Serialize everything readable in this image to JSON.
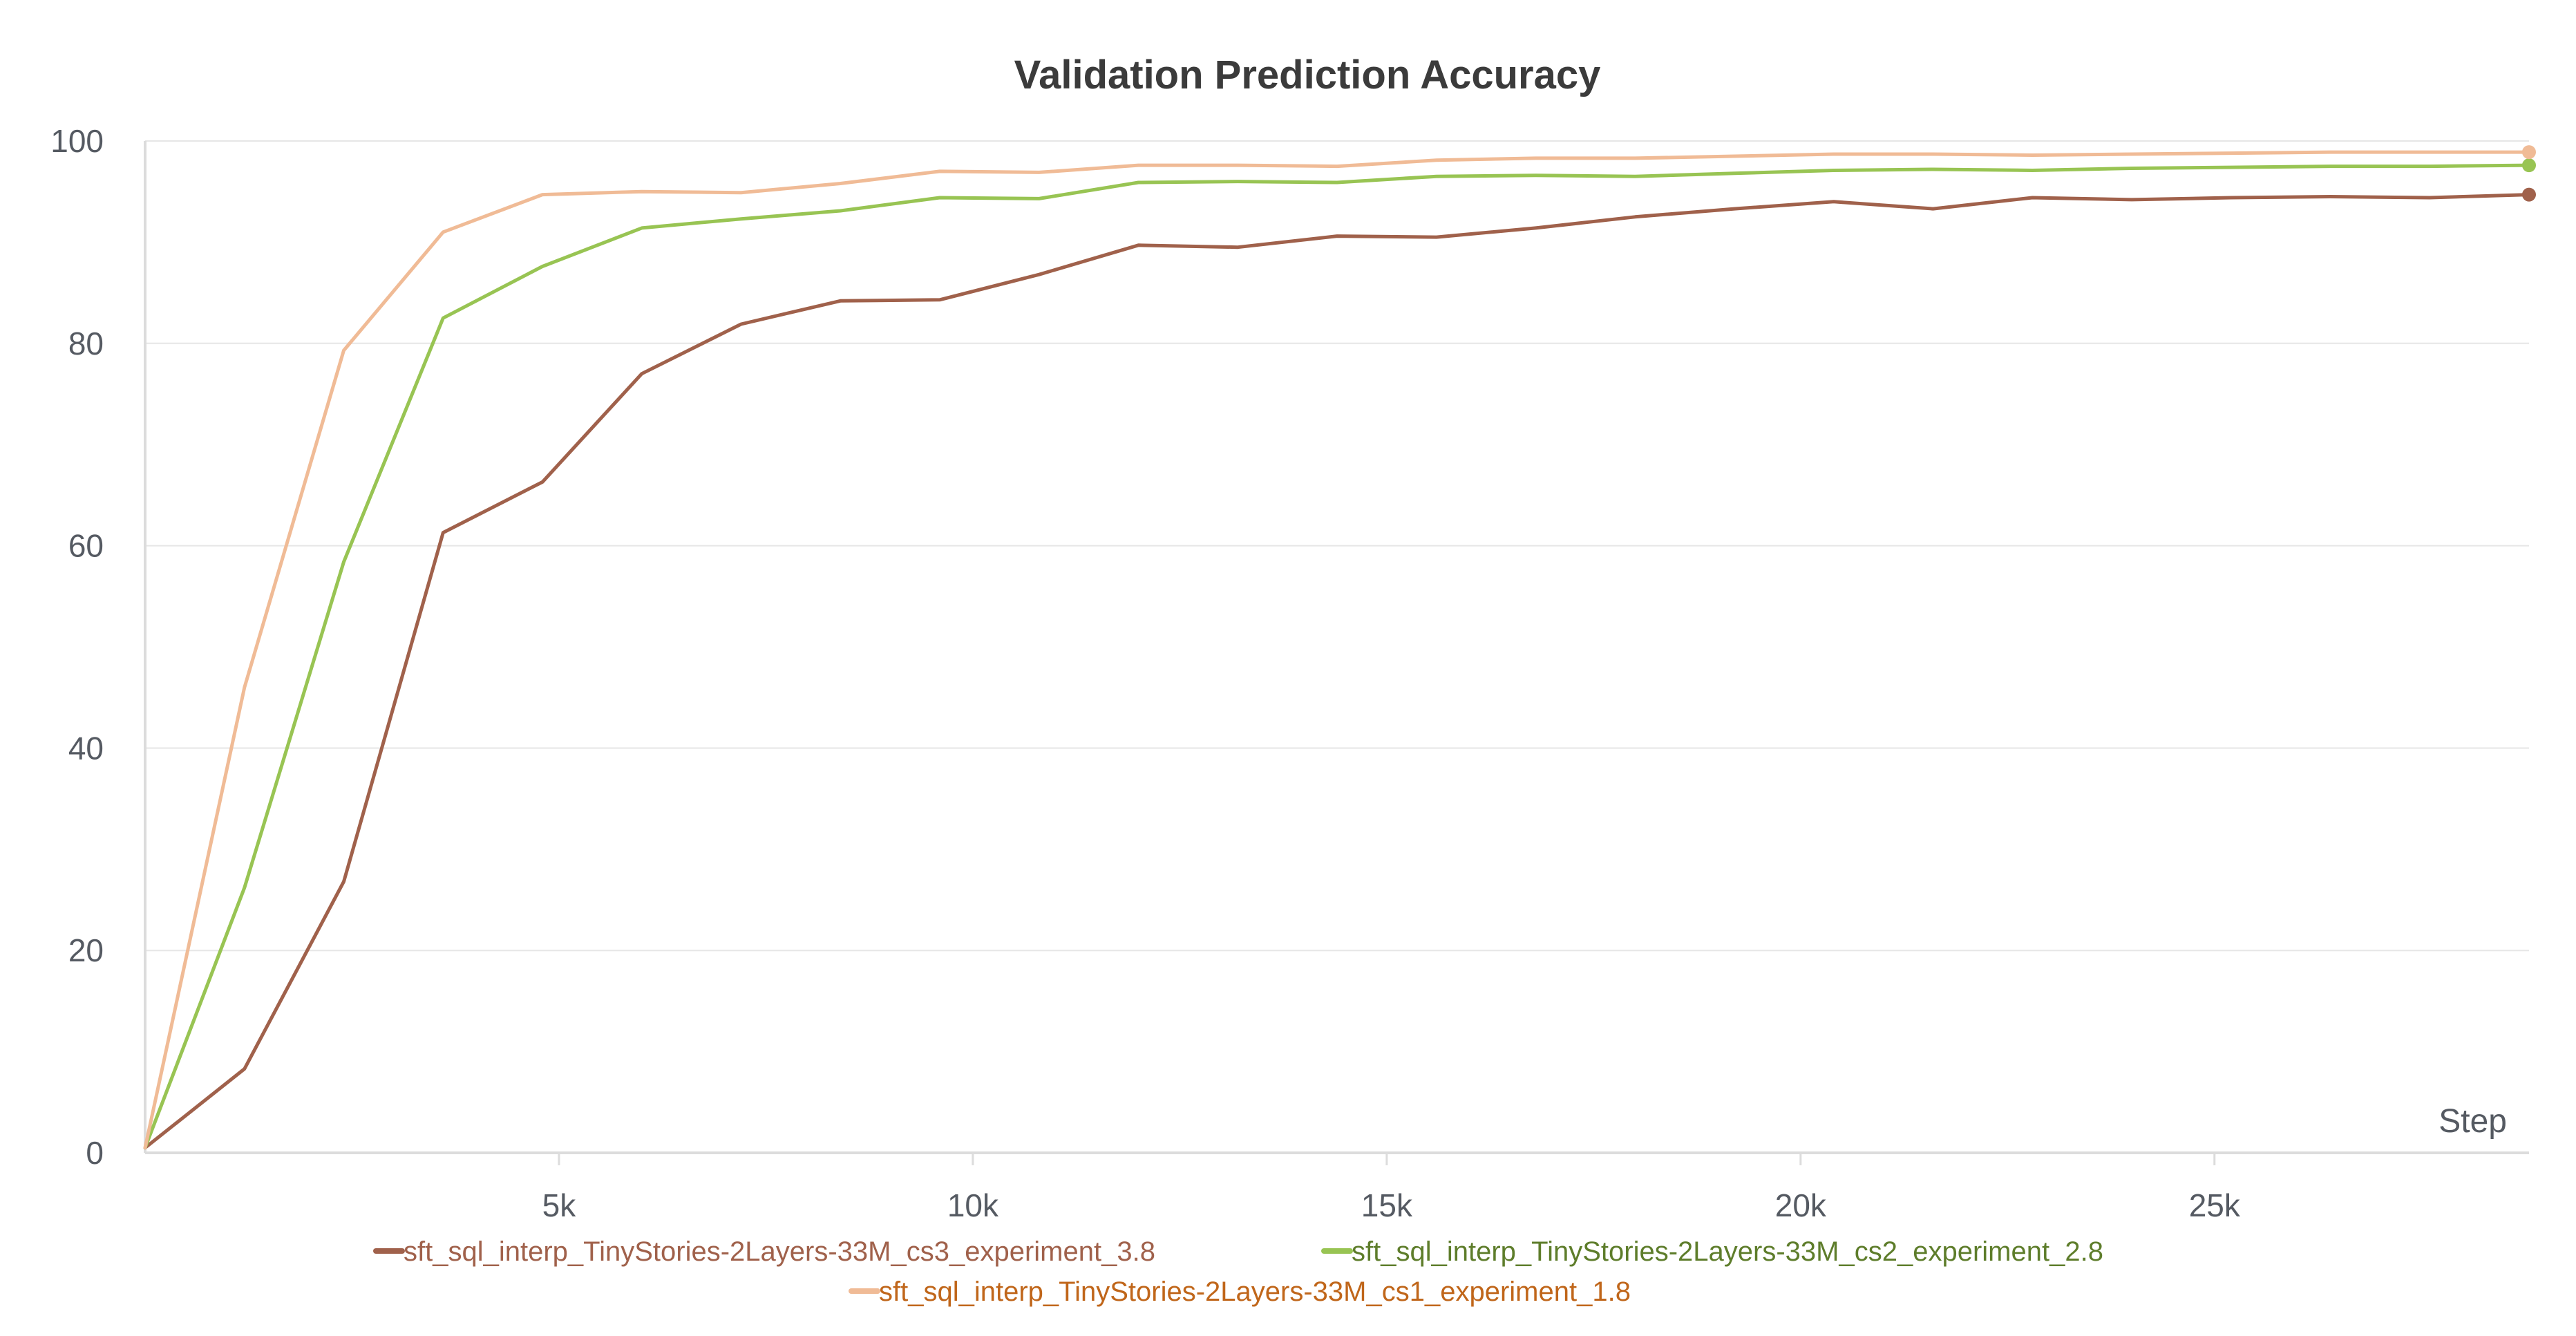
{
  "chart_data": {
    "type": "line",
    "title": "Validation Prediction Accuracy",
    "xlabel": "Step",
    "ylabel": "",
    "xlim": [
      0,
      28800
    ],
    "ylim": [
      0,
      100
    ],
    "x_ticks": [
      5000,
      10000,
      15000,
      20000,
      25000
    ],
    "x_tick_labels": [
      "5k",
      "10k",
      "15k",
      "20k",
      "25k"
    ],
    "y_ticks": [
      0,
      20,
      40,
      60,
      80,
      100
    ],
    "y_tick_labels": [
      "0",
      "20",
      "40",
      "60",
      "80",
      "100"
    ],
    "grid": "horizontal",
    "legend_position": "bottom",
    "series": [
      {
        "name": "sft_sql_interp_TinyStories-2Layers-33M_cs3_experiment_3.8",
        "color": "#a0614b",
        "text_color": "#a0614b",
        "x": [
          0,
          1200,
          2400,
          3600,
          4800,
          6000,
          7200,
          8400,
          9600,
          10800,
          12000,
          13200,
          14400,
          15600,
          16800,
          18000,
          19200,
          20400,
          21600,
          22800,
          24000,
          25200,
          26400,
          27600,
          28800
        ],
        "values": [
          0.5,
          8.3,
          26.8,
          61.3,
          66.3,
          77.0,
          81.9,
          84.2,
          84.3,
          86.8,
          89.7,
          89.5,
          90.6,
          90.5,
          91.4,
          92.5,
          93.3,
          94.0,
          93.3,
          94.4,
          94.2,
          94.4,
          94.5,
          94.4,
          94.7
        ]
      },
      {
        "name": "sft_sql_interp_TinyStories-2Layers-33M_cs2_experiment_2.8",
        "color": "#98c453",
        "text_color": "#5e7d2b",
        "x": [
          0,
          1200,
          2400,
          3600,
          4800,
          6000,
          7200,
          8400,
          9600,
          10800,
          12000,
          13200,
          14400,
          15600,
          16800,
          18000,
          19200,
          20400,
          21600,
          22800,
          24000,
          25200,
          26400,
          27600,
          28800
        ],
        "values": [
          0.5,
          26.2,
          58.4,
          82.5,
          87.6,
          91.4,
          92.3,
          93.1,
          94.4,
          94.3,
          95.9,
          96.0,
          95.9,
          96.5,
          96.6,
          96.5,
          96.8,
          97.1,
          97.2,
          97.1,
          97.3,
          97.4,
          97.5,
          97.5,
          97.6
        ]
      },
      {
        "name": "sft_sql_interp_TinyStories-2Layers-33M_cs1_experiment_1.8",
        "color": "#f0bb96",
        "text_color": "#c0661a",
        "x": [
          0,
          1200,
          2400,
          3600,
          4800,
          6000,
          7200,
          8400,
          9600,
          10800,
          12000,
          13200,
          14400,
          15600,
          16800,
          18000,
          19200,
          20400,
          21600,
          22800,
          24000,
          25200,
          26400,
          27600,
          28800
        ],
        "values": [
          0.5,
          46.0,
          79.3,
          91.0,
          94.7,
          95.0,
          94.9,
          95.8,
          97.0,
          96.9,
          97.6,
          97.6,
          97.5,
          98.1,
          98.3,
          98.3,
          98.5,
          98.7,
          98.7,
          98.6,
          98.7,
          98.8,
          98.9,
          98.9,
          98.9
        ]
      }
    ]
  }
}
